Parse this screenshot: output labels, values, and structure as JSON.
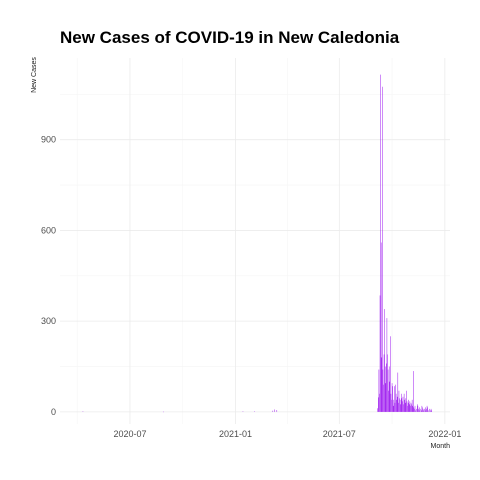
{
  "chart_data": {
    "type": "bar",
    "title": "New Cases of COVID-19 in New Caledonia",
    "xlabel": "Month",
    "ylabel": "New Cases",
    "x_ticks": [
      {
        "date": "2020-07-01",
        "label": "2020-07"
      },
      {
        "date": "2021-01-01",
        "label": "2021-01"
      },
      {
        "date": "2021-07-01",
        "label": "2021-07"
      },
      {
        "date": "2022-01-01",
        "label": "2022-01"
      }
    ],
    "y_ticks": [
      0,
      300,
      600,
      900
    ],
    "xlim": [
      "2020-03-01",
      "2022-01-10"
    ],
    "ylim": [
      -40,
      1170
    ],
    "grid": true,
    "bar_color": "#a020f0",
    "series": [
      {
        "x": [
          "2020-04-10",
          "2020-08-28",
          "2021-01-14",
          "2021-02-03",
          "2021-03-07",
          "2021-03-10",
          "2021-03-14",
          "2021-09-06",
          "2021-09-07",
          "2021-09-08",
          "2021-09-09",
          "2021-09-10",
          "2021-09-11",
          "2021-09-12",
          "2021-09-13",
          "2021-09-14",
          "2021-09-15",
          "2021-09-16",
          "2021-09-17",
          "2021-09-18",
          "2021-09-19",
          "2021-09-20",
          "2021-09-21",
          "2021-09-22",
          "2021-09-23",
          "2021-09-24",
          "2021-09-25",
          "2021-09-26",
          "2021-09-27",
          "2021-09-28",
          "2021-09-29",
          "2021-09-30",
          "2021-10-01",
          "2021-10-02",
          "2021-10-03",
          "2021-10-04",
          "2021-10-05",
          "2021-10-06",
          "2021-10-07",
          "2021-10-08",
          "2021-10-09",
          "2021-10-10",
          "2021-10-11",
          "2021-10-12",
          "2021-10-13",
          "2021-10-14",
          "2021-10-15",
          "2021-10-16",
          "2021-10-17",
          "2021-10-18",
          "2021-10-19",
          "2021-10-20",
          "2021-10-21",
          "2021-10-22",
          "2021-10-23",
          "2021-10-24",
          "2021-10-25",
          "2021-10-26",
          "2021-10-27",
          "2021-10-28",
          "2021-10-29",
          "2021-10-30",
          "2021-10-31",
          "2021-11-01",
          "2021-11-02",
          "2021-11-03",
          "2021-11-04",
          "2021-11-05",
          "2021-11-06",
          "2021-11-07",
          "2021-11-08",
          "2021-11-09",
          "2021-11-10",
          "2021-11-11",
          "2021-11-12",
          "2021-11-13",
          "2021-11-14",
          "2021-11-15",
          "2021-11-16",
          "2021-11-17",
          "2021-11-18",
          "2021-11-19",
          "2021-11-20",
          "2021-11-21",
          "2021-11-22",
          "2021-11-23",
          "2021-11-24",
          "2021-11-25",
          "2021-11-26",
          "2021-11-27",
          "2021-11-28",
          "2021-11-29",
          "2021-11-30",
          "2021-12-01",
          "2021-12-02",
          "2021-12-03",
          "2021-12-04",
          "2021-12-05",
          "2021-12-06",
          "2021-12-07",
          "2021-12-08",
          "2021-12-09",
          "2021-12-10",
          "2021-12-11",
          "2021-12-12",
          "2021-12-13",
          "2021-12-14",
          "2021-12-15",
          "2021-12-16",
          "2021-12-17",
          "2021-12-18",
          "2021-12-19",
          "2021-12-20",
          "2021-12-21",
          "2021-12-22",
          "2021-12-23",
          "2021-12-24",
          "2021-12-25",
          "2021-12-26",
          "2021-12-27"
        ],
        "values": [
          2,
          1,
          2,
          2,
          4,
          8,
          6,
          12,
          48,
          140,
          60,
          385,
          1115,
          560,
          180,
          1075,
          140,
          90,
          190,
          340,
          150,
          95,
          160,
          310,
          190,
          140,
          70,
          150,
          100,
          250,
          60,
          40,
          95,
          85,
          20,
          40,
          85,
          30,
          90,
          60,
          40,
          50,
          130,
          30,
          70,
          45,
          40,
          25,
          60,
          45,
          35,
          50,
          25,
          60,
          40,
          30,
          45,
          70,
          35,
          20,
          30,
          40,
          25,
          35,
          20,
          30,
          25,
          40,
          20,
          135,
          15,
          10,
          20,
          5,
          0,
          10,
          25,
          20,
          10,
          5,
          15,
          10,
          0,
          5,
          20,
          15,
          10,
          5,
          0,
          10,
          15,
          5,
          10,
          20,
          15,
          5,
          0,
          10,
          0,
          5,
          10,
          5,
          0,
          0,
          0,
          0,
          0,
          0,
          0,
          0,
          0,
          0,
          0,
          0,
          0,
          0,
          0,
          0,
          0,
          0
        ]
      }
    ]
  }
}
